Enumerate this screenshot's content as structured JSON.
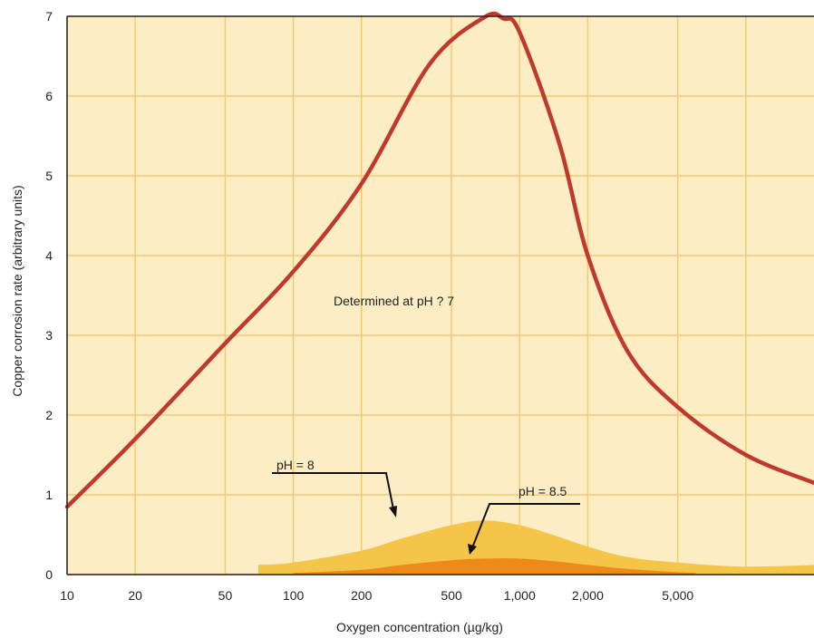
{
  "chart_data": {
    "type": "line",
    "title": "",
    "xlabel": "Oxygen concentration (µg/kg)",
    "ylabel": "Copper corrosion rate (arbitrary units)",
    "x_scale": "log",
    "xlim": [
      10,
      20000
    ],
    "ylim": [
      0,
      7
    ],
    "x_ticks": [
      10,
      20,
      50,
      100,
      200,
      500,
      1000,
      2000,
      5000
    ],
    "x_tick_labels": [
      "10",
      "20",
      "50",
      "100",
      "200",
      "500",
      "1,000",
      "2,000",
      "5,000"
    ],
    "y_ticks": [
      0,
      1,
      2,
      3,
      4,
      5,
      6,
      7
    ],
    "y_tick_labels": [
      "0",
      "1",
      "2",
      "3",
      "4",
      "5",
      "6",
      "7"
    ],
    "grid": true,
    "background_color": "#fdedc4",
    "grid_color": "#f7c96e",
    "series": [
      {
        "kind": "line",
        "color": "#c0392b",
        "x": [
          10,
          20,
          50,
          100,
          200,
          400,
          700,
          850,
          1000,
          1500,
          2000,
          3000,
          5000,
          10000,
          20000
        ],
        "y": [
          0.85,
          1.7,
          2.9,
          3.8,
          4.9,
          6.4,
          6.99,
          6.97,
          6.8,
          5.4,
          4.0,
          2.8,
          2.1,
          1.5,
          1.15
        ]
      },
      {
        "kind": "area",
        "color": "#f5c54a",
        "x": [
          70,
          100,
          200,
          300,
          500,
          700,
          1000,
          1500,
          2000,
          3000,
          5000,
          10000,
          20000
        ],
        "y": [
          0.12,
          0.15,
          0.3,
          0.45,
          0.62,
          0.68,
          0.62,
          0.47,
          0.35,
          0.22,
          0.15,
          0.1,
          0.12
        ]
      },
      {
        "kind": "area",
        "color": "#ee8a1a",
        "x": [
          100,
          200,
          300,
          500,
          700,
          1000,
          1500,
          2000,
          3000,
          5000,
          6000
        ],
        "y": [
          0.02,
          0.06,
          0.12,
          0.18,
          0.2,
          0.2,
          0.16,
          0.12,
          0.07,
          0.03,
          0.02
        ]
      }
    ],
    "annotations": {
      "main": "Determined at pH ? 7",
      "ph8": "pH = 8",
      "ph85": "pH = 8.5"
    }
  }
}
